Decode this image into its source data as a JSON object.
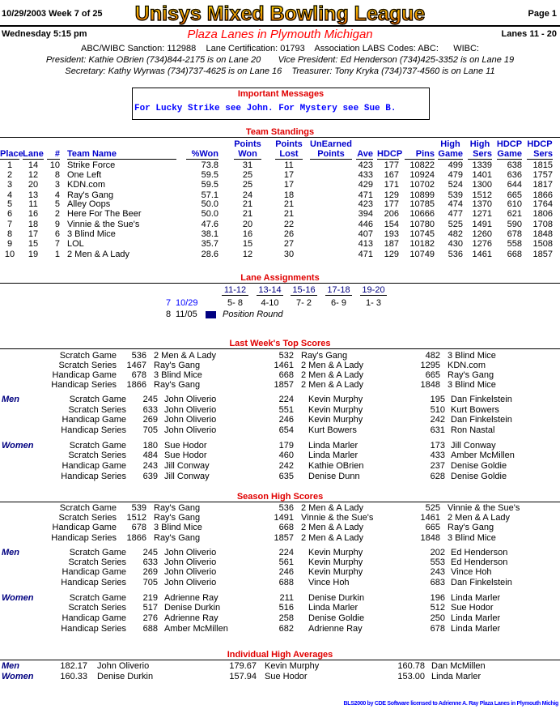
{
  "header": {
    "date_week": "10/29/2003   Week 7 of 25",
    "title": "Unisys Mixed Bowling League",
    "page": "Page 1",
    "day_time": "Wednesday   5:15 pm",
    "location": "Plaza Lanes in Plymouth Michigan",
    "lanes": "Lanes 11 - 20",
    "sanction_line": "ABC/WIBC Sanction: 112988    Lane Certification: 01793    Association LABS Codes: ABC:      WIBC:",
    "officers_line1": "President: Kathie OBrien (734)844-2175 is on Lane 20       Vice President: Ed Henderson (734)425-3352 is on Lane 19",
    "officers_line2": "Secretary: Kathy Wyrwas (734)737-4625 is on Lane 16    Treasurer: Tony Kryka (734)737-4560 is on Lane 11"
  },
  "messages": {
    "title": "Important Messages",
    "text": "For Lucky Strike see John. For Mystery see Sue B."
  },
  "standings": {
    "title": "Team Standings",
    "headers": [
      {
        "l1": "",
        "l2": "Place"
      },
      {
        "l1": "",
        "l2": "Lane"
      },
      {
        "l1": "",
        "l2": "#"
      },
      {
        "l1": "",
        "l2": "Team Name"
      },
      {
        "l1": "",
        "l2": "%Won"
      },
      {
        "l1": "Points",
        "l2": "Won"
      },
      {
        "l1": "Points",
        "l2": "Lost"
      },
      {
        "l1": "UnEarned",
        "l2": "Points"
      },
      {
        "l1": "",
        "l2": "Ave"
      },
      {
        "l1": "",
        "l2": "HDCP"
      },
      {
        "l1": "",
        "l2": "Pins"
      },
      {
        "l1": "High",
        "l2": "Game"
      },
      {
        "l1": "High",
        "l2": "Sers"
      },
      {
        "l1": "HDCP",
        "l2": "Game"
      },
      {
        "l1": "HDCP",
        "l2": "Sers"
      }
    ],
    "rows": [
      [
        "1",
        "14",
        "10",
        "Strike Force",
        "73.8",
        "31",
        "11",
        "",
        "423",
        "177",
        "10822",
        "499",
        "1339",
        "638",
        "1815"
      ],
      [
        "2",
        "12",
        "8",
        "One Left",
        "59.5",
        "25",
        "17",
        "",
        "433",
        "167",
        "10924",
        "479",
        "1401",
        "636",
        "1757"
      ],
      [
        "3",
        "20",
        "3",
        "KDN.com",
        "59.5",
        "25",
        "17",
        "",
        "429",
        "171",
        "10702",
        "524",
        "1300",
        "644",
        "1817"
      ],
      [
        "4",
        "13",
        "4",
        "Ray's Gang",
        "57.1",
        "24",
        "18",
        "",
        "471",
        "129",
        "10899",
        "539",
        "1512",
        "665",
        "1866"
      ],
      [
        "5",
        "11",
        "5",
        "Alley Oops",
        "50.0",
        "21",
        "21",
        "",
        "423",
        "177",
        "10785",
        "474",
        "1370",
        "610",
        "1764"
      ],
      [
        "6",
        "16",
        "2",
        "Here For The Beer",
        "50.0",
        "21",
        "21",
        "",
        "394",
        "206",
        "10666",
        "477",
        "1271",
        "621",
        "1806"
      ],
      [
        "7",
        "18",
        "9",
        "Vinnie & the Sue's",
        "47.6",
        "20",
        "22",
        "",
        "446",
        "154",
        "10780",
        "525",
        "1491",
        "590",
        "1708"
      ],
      [
        "8",
        "17",
        "6",
        "3 Blind Mice",
        "38.1",
        "16",
        "26",
        "",
        "407",
        "193",
        "10745",
        "482",
        "1260",
        "678",
        "1848"
      ],
      [
        "9",
        "15",
        "7",
        "LOL",
        "35.7",
        "15",
        "27",
        "",
        "413",
        "187",
        "10182",
        "430",
        "1276",
        "558",
        "1508"
      ],
      [
        "10",
        "19",
        "1",
        "2 Men & A Lady",
        "28.6",
        "12",
        "30",
        "",
        "471",
        "129",
        "10749",
        "536",
        "1461",
        "668",
        "1857"
      ]
    ]
  },
  "lane_assignments": {
    "title": "Lane Assignments",
    "pairs": [
      "11-12",
      "13-14",
      "15-16",
      "17-18",
      "19-20"
    ],
    "current": {
      "week": "7",
      "date": "10/29",
      "matchups": [
        "5- 8",
        "4-10",
        "7- 2",
        "6- 9",
        "1- 3"
      ]
    },
    "next": {
      "week": "8",
      "date": "11/05",
      "icon": "pointing-hand-icon",
      "text": "Position Round"
    }
  },
  "last_week": {
    "title": "Last Week's Top Scores",
    "team": [
      {
        "label": "Scratch Game",
        "entries": [
          [
            "536",
            "2 Men & A Lady"
          ],
          [
            "532",
            "Ray's Gang"
          ],
          [
            "482",
            "3 Blind Mice"
          ]
        ]
      },
      {
        "label": "Scratch Series",
        "entries": [
          [
            "1467",
            "Ray's Gang"
          ],
          [
            "1461",
            "2 Men & A Lady"
          ],
          [
            "1295",
            "KDN.com"
          ]
        ]
      },
      {
        "label": "Handicap Game",
        "entries": [
          [
            "678",
            "3 Blind Mice"
          ],
          [
            "668",
            "2 Men & A Lady"
          ],
          [
            "665",
            "Ray's Gang"
          ]
        ]
      },
      {
        "label": "Handicap Series",
        "entries": [
          [
            "1866",
            "Ray's Gang"
          ],
          [
            "1857",
            "2 Men & A Lady"
          ],
          [
            "1848",
            "3 Blind Mice"
          ]
        ]
      }
    ],
    "men_label": "Men",
    "men": [
      {
        "label": "Scratch Game",
        "entries": [
          [
            "245",
            "John Oliverio"
          ],
          [
            "224",
            "Kevin Murphy"
          ],
          [
            "195",
            "Dan Finkelstein"
          ]
        ]
      },
      {
        "label": "Scratch Series",
        "entries": [
          [
            "633",
            "John Oliverio"
          ],
          [
            "551",
            "Kevin Murphy"
          ],
          [
            "510",
            "Kurt Bowers"
          ]
        ]
      },
      {
        "label": "Handicap Game",
        "entries": [
          [
            "269",
            "John Oliverio"
          ],
          [
            "246",
            "Kevin Murphy"
          ],
          [
            "242",
            "Dan Finkelstein"
          ]
        ]
      },
      {
        "label": "Handicap Series",
        "entries": [
          [
            "705",
            "John Oliverio"
          ],
          [
            "654",
            "Kurt Bowers"
          ],
          [
            "631",
            "Ron Nastal"
          ]
        ]
      }
    ],
    "women_label": "Women",
    "women": [
      {
        "label": "Scratch Game",
        "entries": [
          [
            "180",
            "Sue Hodor"
          ],
          [
            "179",
            "Linda Marler"
          ],
          [
            "173",
            "Jill Conway"
          ]
        ]
      },
      {
        "label": "Scratch Series",
        "entries": [
          [
            "484",
            "Sue Hodor"
          ],
          [
            "460",
            "Linda Marler"
          ],
          [
            "433",
            "Amber McMillen"
          ]
        ]
      },
      {
        "label": "Handicap Game",
        "entries": [
          [
            "243",
            "Jill Conway"
          ],
          [
            "242",
            "Kathie OBrien"
          ],
          [
            "237",
            "Denise Goldie"
          ]
        ]
      },
      {
        "label": "Handicap Series",
        "entries": [
          [
            "639",
            "Jill Conway"
          ],
          [
            "635",
            "Denise Dunn"
          ],
          [
            "628",
            "Denise Goldie"
          ]
        ]
      }
    ]
  },
  "season": {
    "title": "Season High Scores",
    "team": [
      {
        "label": "Scratch Game",
        "entries": [
          [
            "539",
            "Ray's Gang"
          ],
          [
            "536",
            "2 Men & A Lady"
          ],
          [
            "525",
            "Vinnie & the Sue's"
          ]
        ]
      },
      {
        "label": "Scratch Series",
        "entries": [
          [
            "1512",
            "Ray's Gang"
          ],
          [
            "1491",
            "Vinnie & the Sue's"
          ],
          [
            "1461",
            "2 Men & A Lady"
          ]
        ]
      },
      {
        "label": "Handicap Game",
        "entries": [
          [
            "678",
            "3 Blind Mice"
          ],
          [
            "668",
            "2 Men & A Lady"
          ],
          [
            "665",
            "Ray's Gang"
          ]
        ]
      },
      {
        "label": "Handicap Series",
        "entries": [
          [
            "1866",
            "Ray's Gang"
          ],
          [
            "1857",
            "2 Men & A Lady"
          ],
          [
            "1848",
            "3 Blind Mice"
          ]
        ]
      }
    ],
    "men_label": "Men",
    "men": [
      {
        "label": "Scratch Game",
        "entries": [
          [
            "245",
            "John Oliverio"
          ],
          [
            "224",
            "Kevin Murphy"
          ],
          [
            "202",
            "Ed Henderson"
          ]
        ]
      },
      {
        "label": "Scratch Series",
        "entries": [
          [
            "633",
            "John Oliverio"
          ],
          [
            "561",
            "Kevin Murphy"
          ],
          [
            "553",
            "Ed Henderson"
          ]
        ]
      },
      {
        "label": "Handicap Game",
        "entries": [
          [
            "269",
            "John Oliverio"
          ],
          [
            "246",
            "Kevin Murphy"
          ],
          [
            "243",
            "Vince Hoh"
          ]
        ]
      },
      {
        "label": "Handicap Series",
        "entries": [
          [
            "705",
            "John Oliverio"
          ],
          [
            "688",
            "Vince Hoh"
          ],
          [
            "683",
            "Dan Finkelstein"
          ]
        ]
      }
    ],
    "women_label": "Women",
    "women": [
      {
        "label": "Scratch Game",
        "entries": [
          [
            "219",
            "Adrienne Ray"
          ],
          [
            "211",
            "Denise Durkin"
          ],
          [
            "196",
            "Linda Marler"
          ]
        ]
      },
      {
        "label": "Scratch Series",
        "entries": [
          [
            "517",
            "Denise Durkin"
          ],
          [
            "516",
            "Linda Marler"
          ],
          [
            "512",
            "Sue Hodor"
          ]
        ]
      },
      {
        "label": "Handicap Game",
        "entries": [
          [
            "276",
            "Adrienne Ray"
          ],
          [
            "258",
            "Denise Goldie"
          ],
          [
            "250",
            "Linda Marler"
          ]
        ]
      },
      {
        "label": "Handicap Series",
        "entries": [
          [
            "688",
            "Amber McMillen"
          ],
          [
            "682",
            "Adrienne Ray"
          ],
          [
            "678",
            "Linda Marler"
          ]
        ]
      }
    ]
  },
  "averages": {
    "title": "Individual High Averages",
    "rows": [
      {
        "label": "Men",
        "entries": [
          [
            "182.17",
            "John Oliverio"
          ],
          [
            "179.67",
            "Kevin Murphy"
          ],
          [
            "160.78",
            "Dan McMillen"
          ]
        ]
      },
      {
        "label": "Women",
        "entries": [
          [
            "160.33",
            "Denise Durkin"
          ],
          [
            "157.94",
            "Sue Hodor"
          ],
          [
            "153.00",
            "Linda Marler"
          ]
        ]
      }
    ]
  },
  "footer": "BLS2000 by CDE Software licensed to Adrienne A. Ray Plaza Lanes in Plymouth Michig",
  "colors": {
    "section_title": "#e00000",
    "header_blue": "#0000cc",
    "gender_label": "#000080",
    "message_text": "#0000ff"
  }
}
